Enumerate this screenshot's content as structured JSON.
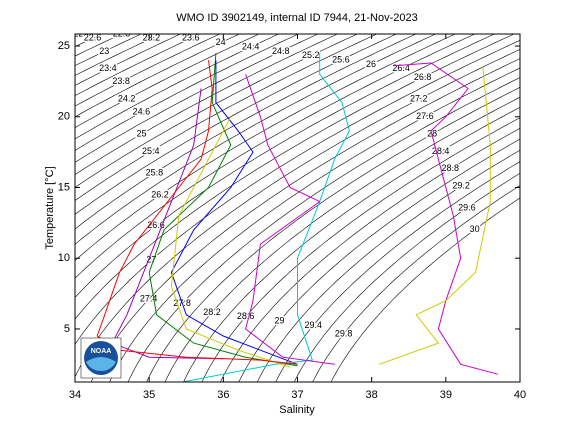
{
  "chart_data": {
    "type": "ts-diagram",
    "title": "WMO ID 3902149, internal ID 7944, 21-Nov-2023",
    "xlabel": "Salinity",
    "ylabel": "Temperature [°C]",
    "logo_text": "NOAA",
    "xlim": [
      34,
      40
    ],
    "ylim": [
      1.25,
      25.85
    ],
    "xticks": [
      34,
      35,
      36,
      37,
      38,
      39,
      40
    ],
    "yticks": [
      5,
      10,
      15,
      20,
      25
    ],
    "contour_color": "#000000",
    "contour_levels": [
      22.4,
      22.6,
      22.8,
      23,
      23.2,
      23.4,
      23.6,
      23.8,
      24,
      24.2,
      24.4,
      24.6,
      24.8,
      25,
      25.2,
      25.4,
      25.6,
      25.8,
      26,
      26.2,
      26.4,
      26.6,
      26.8,
      27,
      27.2,
      27.4,
      27.6,
      27.8,
      28,
      28.2,
      28.4,
      28.6,
      28.8,
      29,
      29.2,
      29.4,
      29.6,
      29.8,
      30
    ],
    "series": [
      {
        "color": "#008000",
        "x": [
          35.9,
          35.85,
          36.1,
          35.8,
          35.2,
          35.0,
          35.1,
          35.6,
          36.3,
          37.0
        ],
        "values": [
          24.5,
          21,
          18,
          15,
          12,
          9,
          6,
          4,
          3,
          2.4
        ]
      },
      {
        "color": "#0000ff",
        "x": [
          35.9,
          35.9,
          36.2,
          36.4,
          36.1,
          35.6,
          35.3,
          35.5,
          36.0,
          36.5,
          37.0
        ],
        "values": [
          24,
          21,
          19,
          17.5,
          15,
          12,
          9,
          6,
          4.5,
          3.5,
          2.5
        ]
      },
      {
        "color": "#cc00cc",
        "x": [
          38.3,
          38.8,
          39.3,
          39.0,
          38.8,
          38.9,
          39.1,
          39.2,
          39.0,
          38.9,
          39.2,
          39.7
        ],
        "values": [
          23.6,
          23.8,
          22,
          20,
          19,
          17,
          13,
          10,
          7,
          5,
          2.5,
          1.8
        ]
      },
      {
        "color": "#cccc00",
        "x": [
          39.5,
          39.6,
          39.6,
          39.4,
          39.0,
          38.6,
          38.9,
          38.1
        ],
        "values": [
          23.5,
          18,
          14,
          9,
          7,
          6,
          4,
          2.5
        ]
      },
      {
        "color": "#00cccc",
        "x": [
          37.3,
          37.3,
          37.6,
          37.7,
          37.5,
          37.3,
          37.0,
          37.0,
          37.2,
          36.7,
          35.4
        ],
        "values": [
          24.5,
          23,
          21,
          19,
          17,
          14,
          10,
          6,
          2.8,
          2.5,
          1.2
        ]
      },
      {
        "color": "#cc00cc",
        "x": [
          36.3,
          36.5,
          36.6,
          36.9,
          37.3,
          36.5,
          36.4,
          36.3,
          36.8,
          37.5
        ],
        "values": [
          23,
          20,
          18,
          15,
          14,
          11,
          7,
          5,
          3,
          2.5
        ]
      },
      {
        "color": "#cccc00",
        "x": [
          36.1,
          35.8,
          35.4,
          35.3,
          35.5,
          36.2,
          36.9
        ],
        "values": [
          20,
          17,
          13,
          8,
          5,
          3.5,
          2.3
        ]
      },
      {
        "color": "#9900cc",
        "x": [
          35.7,
          35.6,
          35.3,
          35.0,
          34.7,
          34.5,
          35.0,
          36.0
        ],
        "values": [
          22,
          18,
          14,
          10,
          6,
          4,
          3,
          2.9
        ]
      },
      {
        "color": "#ff0000",
        "x": [
          35.8,
          35.85,
          35.8,
          35.7,
          35.4,
          35.1,
          34.8,
          34.6,
          34.4,
          34.3,
          34.6,
          35.5,
          36.5,
          37.0
        ],
        "values": [
          24,
          22,
          19,
          17,
          15,
          13,
          11,
          9,
          6,
          4.5,
          3.5,
          3,
          2.8,
          2.5
        ]
      }
    ]
  }
}
